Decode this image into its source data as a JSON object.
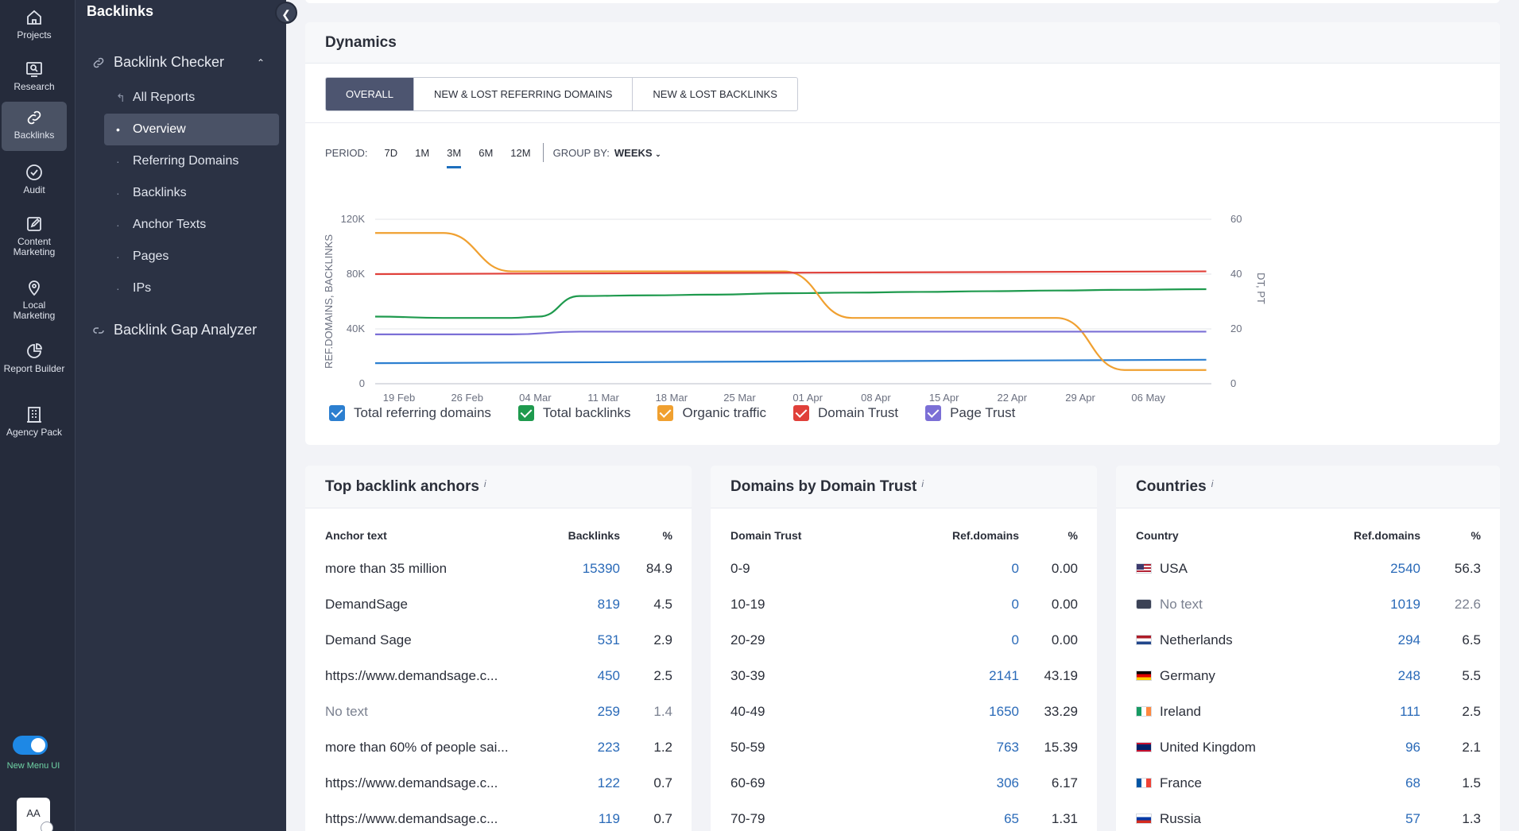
{
  "rail": {
    "items": [
      {
        "label": "Projects",
        "icon": "home-icon"
      },
      {
        "label": "Research",
        "icon": "research-icon"
      },
      {
        "label": "Backlinks",
        "icon": "link-icon"
      },
      {
        "label": "Audit",
        "icon": "check-circle-icon"
      },
      {
        "label": "Content Marketing",
        "icon": "edit-icon"
      },
      {
        "label": "Local Marketing",
        "icon": "map-pin-icon"
      },
      {
        "label": "Report Builder",
        "icon": "pie-chart-icon"
      },
      {
        "label": "Agency Pack",
        "icon": "building-icon"
      }
    ],
    "toggle_label": "New Menu UI",
    "avatar": "AA"
  },
  "subnav": {
    "title": "Backlinks",
    "group1": "Backlink Checker",
    "items": [
      "All Reports",
      "Overview",
      "Referring Domains",
      "Backlinks",
      "Anchor Texts",
      "Pages",
      "IPs"
    ],
    "group2": "Backlink Gap Analyzer"
  },
  "dynamics": {
    "title": "Dynamics",
    "tabs": [
      "OVERALL",
      "NEW & LOST REFERRING DOMAINS",
      "NEW & LOST BACKLINKS"
    ],
    "period_label": "PERIOD:",
    "periods": [
      "7D",
      "1M",
      "3M",
      "6M",
      "12M"
    ],
    "active_period": "3M",
    "groupby_label": "GROUP BY:",
    "groupby_value": "WEEKS",
    "legend": [
      {
        "name": "Total referring domains",
        "color": "#2c7fd0"
      },
      {
        "name": "Total backlinks",
        "color": "#1f9a4e"
      },
      {
        "name": "Organic traffic",
        "color": "#f0a030"
      },
      {
        "name": "Domain Trust",
        "color": "#e0403a"
      },
      {
        "name": "Page Trust",
        "color": "#7b6fd6"
      }
    ]
  },
  "chart_data": {
    "type": "line",
    "x": [
      "19 Feb",
      "26 Feb",
      "04 Mar",
      "11 Mar",
      "18 Mar",
      "25 Mar",
      "01 Apr",
      "08 Apr",
      "15 Apr",
      "22 Apr",
      "29 Apr",
      "06 May"
    ],
    "ylabel": "REF.DOMAINS, BACKLINKS",
    "y2label": "DT, PT",
    "ylim": [
      0,
      120000
    ],
    "y2lim": [
      0,
      60
    ],
    "yticks": [
      "0",
      "40K",
      "80K",
      "120K"
    ],
    "y2ticks": [
      "0",
      "20",
      "40",
      "60"
    ],
    "series": [
      {
        "name": "Total referring domains",
        "axis": "left",
        "color": "#2c7fd0",
        "x": [
          0,
          12.2
        ],
        "values": [
          15000,
          17500
        ]
      },
      {
        "name": "Total backlinks",
        "axis": "left",
        "color": "#1f9a4e",
        "x": [
          0,
          1,
          2,
          2.4,
          3,
          4,
          5,
          6,
          7,
          8,
          9,
          10,
          11,
          12.2
        ],
        "values": [
          49000,
          48000,
          48000,
          49000,
          64000,
          64500,
          65000,
          66000,
          66500,
          67000,
          67500,
          68000,
          68500,
          69000
        ]
      },
      {
        "name": "Organic traffic",
        "axis": "right",
        "color": "#f0a030",
        "x": [
          0,
          1,
          2,
          3,
          4,
          5,
          6,
          7,
          8,
          9,
          10,
          11,
          12.2
        ],
        "values": [
          55,
          55,
          41,
          41,
          41,
          41,
          41,
          24,
          24,
          24,
          24,
          5,
          5
        ]
      },
      {
        "name": "Domain Trust",
        "axis": "right",
        "color": "#e0403a",
        "x": [
          0,
          12.2
        ],
        "values": [
          40,
          41
        ]
      },
      {
        "name": "Page Trust",
        "axis": "right",
        "color": "#7b6fd6",
        "x": [
          0,
          2,
          3,
          12.2
        ],
        "values": [
          18,
          18,
          19,
          19
        ]
      }
    ]
  },
  "anchors": {
    "title": "Top backlink anchors",
    "info": "i",
    "headers": [
      "Anchor text",
      "Backlinks",
      "%"
    ],
    "rows": [
      {
        "text": "more than 35 million",
        "backlinks": "15390",
        "pct": "84.9"
      },
      {
        "text": "DemandSage",
        "backlinks": "819",
        "pct": "4.5"
      },
      {
        "text": "Demand Sage",
        "backlinks": "531",
        "pct": "2.9"
      },
      {
        "text": "https://www.demandsage.c...",
        "backlinks": "450",
        "pct": "2.5"
      },
      {
        "text": "No text",
        "backlinks": "259",
        "pct": "1.4",
        "muted": true
      },
      {
        "text": "more than 60% of people sai...",
        "backlinks": "223",
        "pct": "1.2"
      },
      {
        "text": "https://www.demandsage.c...",
        "backlinks": "122",
        "pct": "0.7"
      },
      {
        "text": "https://www.demandsage.c...",
        "backlinks": "119",
        "pct": "0.7"
      }
    ]
  },
  "domain_trust": {
    "title": "Domains by Domain Trust",
    "info": "i",
    "headers": [
      "Domain Trust",
      "Ref.domains",
      "%"
    ],
    "rows": [
      {
        "range": "0-9",
        "domains": "0",
        "pct": "0.00"
      },
      {
        "range": "10-19",
        "domains": "0",
        "pct": "0.00"
      },
      {
        "range": "20-29",
        "domains": "0",
        "pct": "0.00"
      },
      {
        "range": "30-39",
        "domains": "2141",
        "pct": "43.19"
      },
      {
        "range": "40-49",
        "domains": "1650",
        "pct": "33.29"
      },
      {
        "range": "50-59",
        "domains": "763",
        "pct": "15.39"
      },
      {
        "range": "60-69",
        "domains": "306",
        "pct": "6.17"
      },
      {
        "range": "70-79",
        "domains": "65",
        "pct": "1.31"
      }
    ]
  },
  "countries": {
    "title": "Countries",
    "info": "i",
    "headers": [
      "Country",
      "Ref.domains",
      "%"
    ],
    "rows": [
      {
        "flag": "us-flag-icon",
        "name": "USA",
        "domains": "2540",
        "pct": "56.3"
      },
      {
        "flag": "globe-icon",
        "name": "No text",
        "domains": "1019",
        "pct": "22.6",
        "muted": true
      },
      {
        "flag": "nl-flag-icon",
        "name": "Netherlands",
        "domains": "294",
        "pct": "6.5"
      },
      {
        "flag": "de-flag-icon",
        "name": "Germany",
        "domains": "248",
        "pct": "5.5"
      },
      {
        "flag": "ie-flag-icon",
        "name": "Ireland",
        "domains": "111",
        "pct": "2.5"
      },
      {
        "flag": "gb-flag-icon",
        "name": "United Kingdom",
        "domains": "96",
        "pct": "2.1"
      },
      {
        "flag": "fr-flag-icon",
        "name": "France",
        "domains": "68",
        "pct": "1.5"
      },
      {
        "flag": "ru-flag-icon",
        "name": "Russia",
        "domains": "57",
        "pct": "1.3"
      }
    ]
  }
}
